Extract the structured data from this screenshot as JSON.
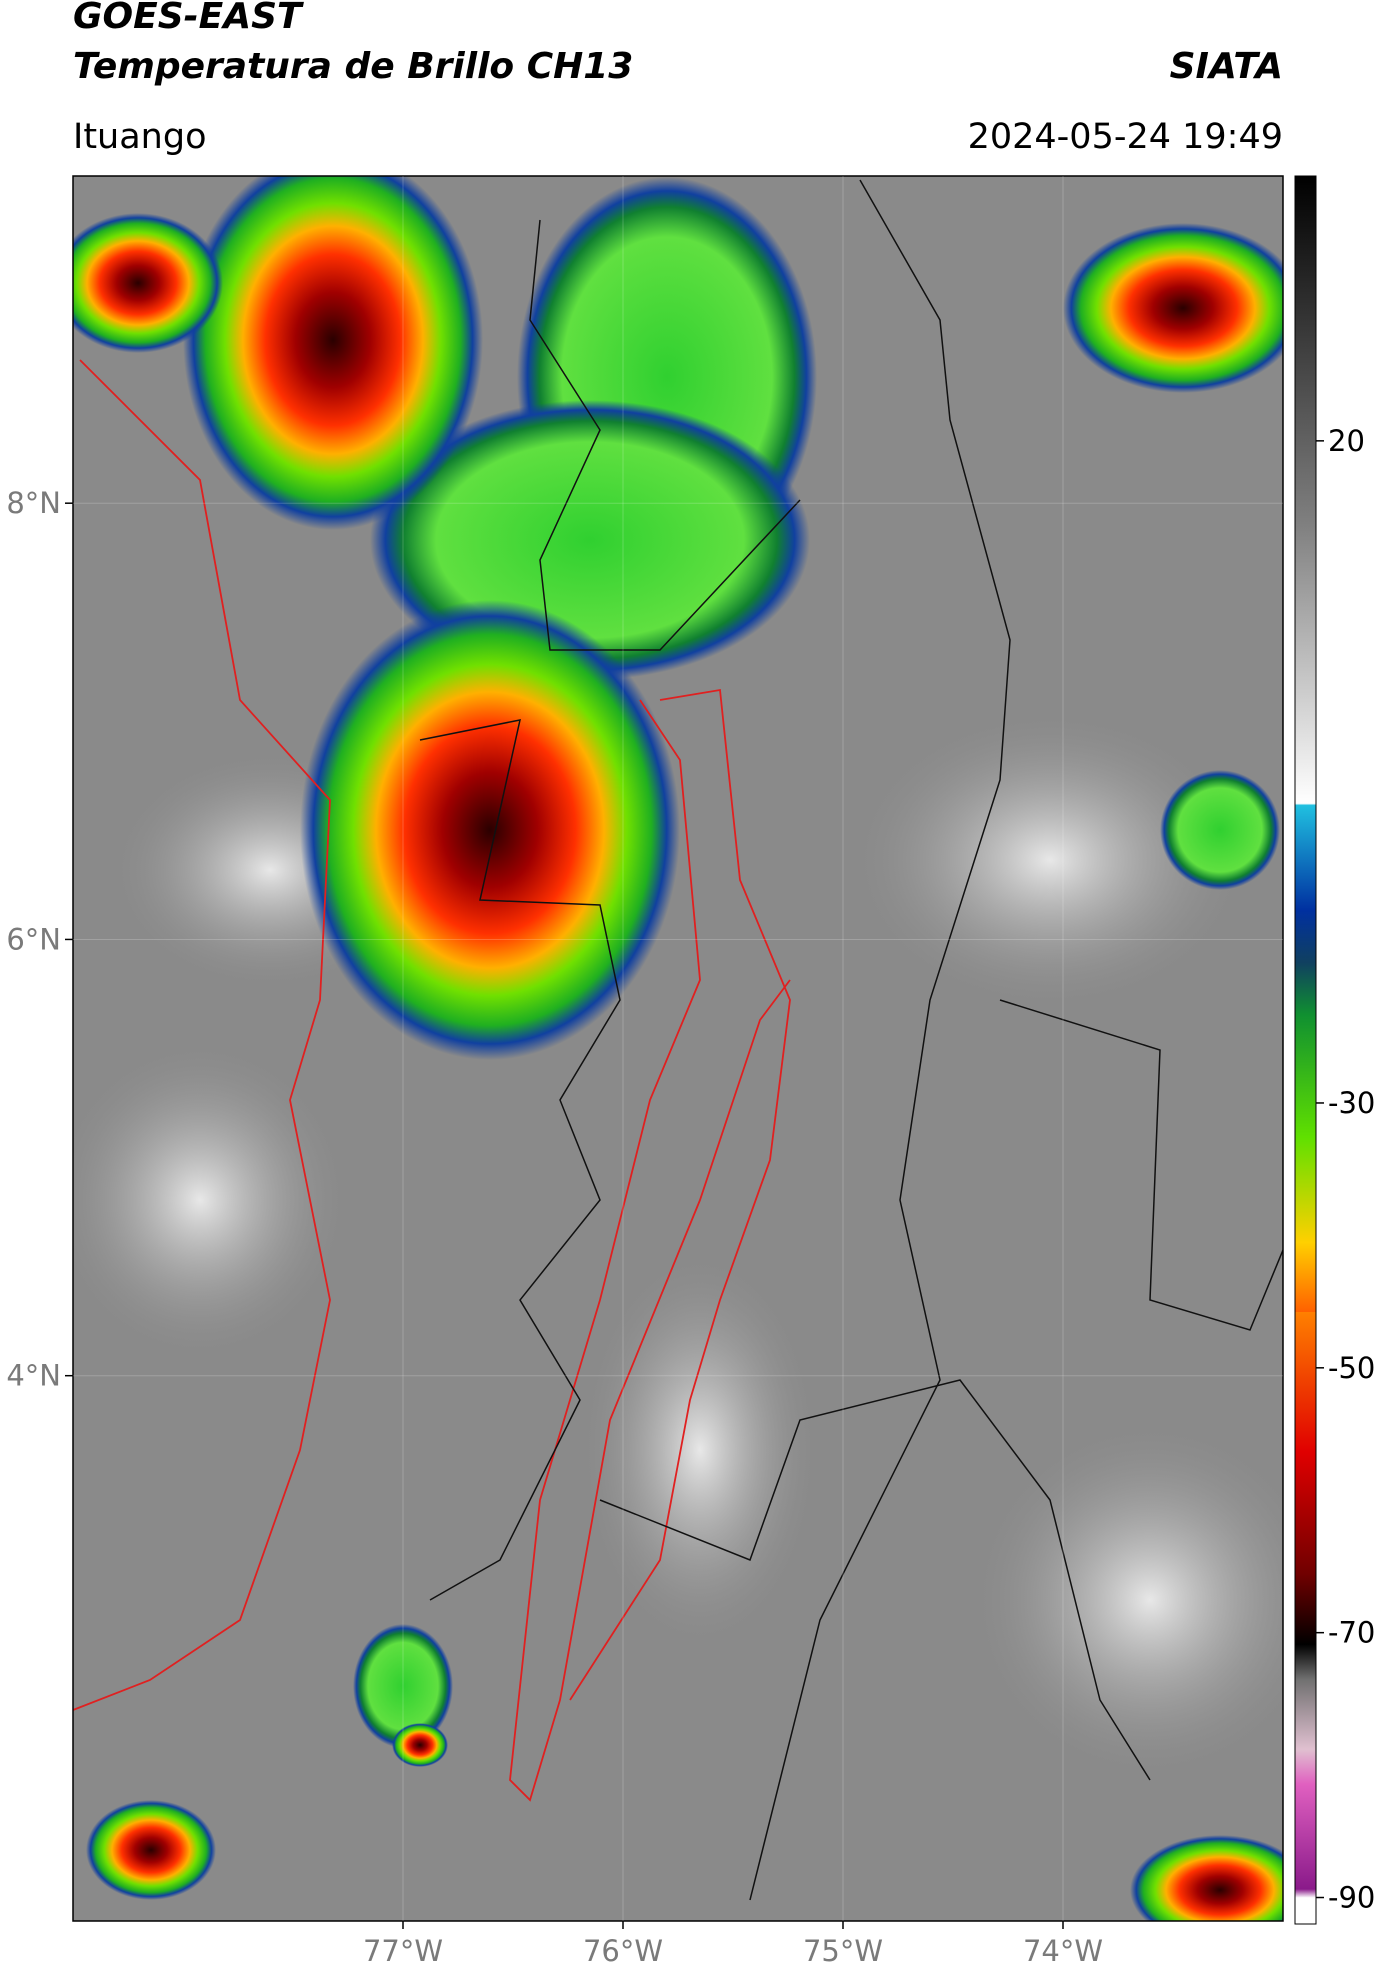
{
  "header": {
    "title_line1": "GOES-EAST",
    "title_line2": "Temperatura de Brillo CH13",
    "brand": "SIATA",
    "location": "Ituango",
    "datetime": "2024-05-24 19:49"
  },
  "map": {
    "xlim": [
      -78.5,
      -73
    ],
    "ylim": [
      1.5,
      9.5
    ],
    "xticks": [
      {
        "value": -77,
        "label": "77°W"
      },
      {
        "value": -76,
        "label": "76°W"
      },
      {
        "value": -75,
        "label": "75°W"
      },
      {
        "value": -74,
        "label": "74°W"
      }
    ],
    "yticks": [
      {
        "value": 8,
        "label": "8°N"
      },
      {
        "value": 6,
        "label": "6°N"
      },
      {
        "value": 4,
        "label": "4°N"
      }
    ]
  },
  "colorbar": {
    "lim": [
      -92,
      40
    ],
    "ticks": [
      20,
      -30,
      -50,
      -70,
      -90
    ]
  }
}
